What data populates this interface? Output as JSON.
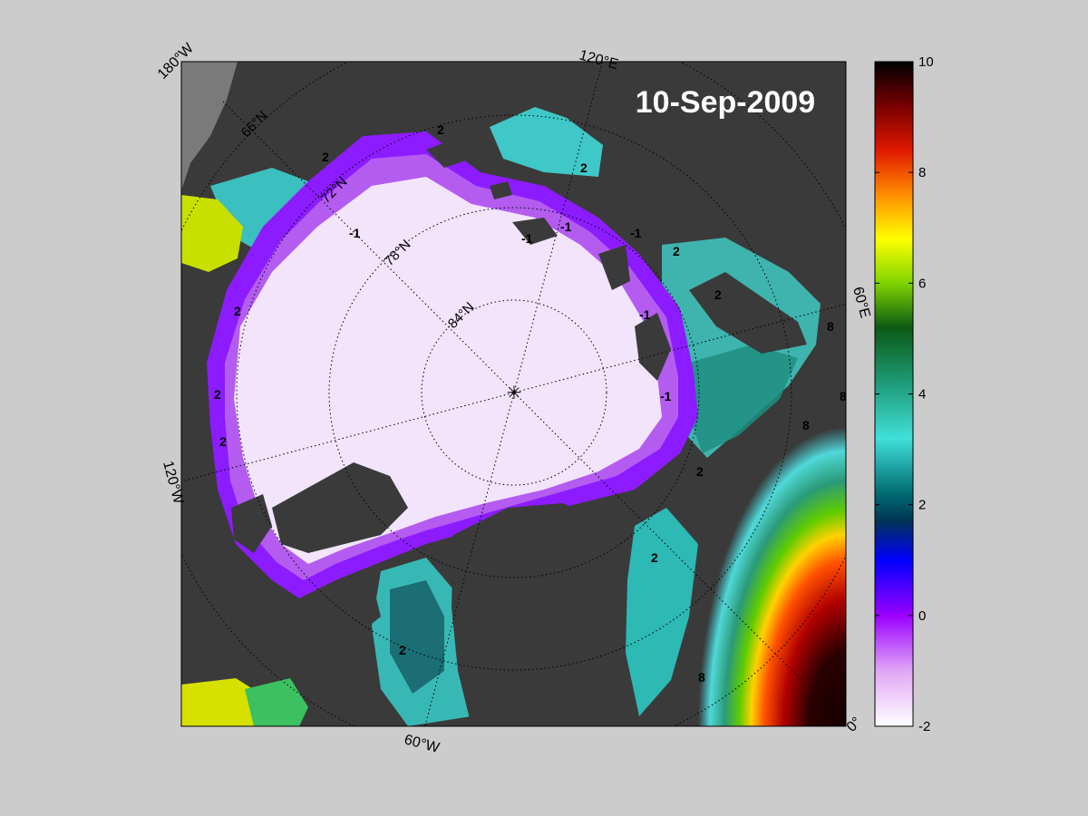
{
  "map": {
    "date_label": "10-Sep-2009",
    "longitude_labels": [
      "180°W",
      "120°E",
      "60°E",
      "0°",
      "60°W",
      "120°W"
    ],
    "latitude_labels": [
      "66°N",
      "72°N",
      "78°N",
      "84°N"
    ],
    "contour_labels": [
      "-1",
      "-1",
      "-1",
      "-1",
      "-1",
      "-1",
      "2",
      "2",
      "2",
      "2",
      "2",
      "2",
      "2",
      "2",
      "2",
      "2",
      "2",
      "8",
      "8",
      "8",
      "8"
    ],
    "colors": {
      "page_background": "#cccccc",
      "land": "#3a3a3a",
      "no_data": "#7a7a7a",
      "ice": "#f4e6fb"
    }
  },
  "colorbar": {
    "tick_labels": [
      "10",
      "8",
      "6",
      "4",
      "2",
      "0",
      "-2"
    ],
    "min": -2,
    "max": 10,
    "stops": [
      {
        "value": -2,
        "color": "#ffffff"
      },
      {
        "value": -1,
        "color": "#e1a6f6"
      },
      {
        "value": 0,
        "color": "#9a00ff"
      },
      {
        "value": 1,
        "color": "#0000ff"
      },
      {
        "value": 1.7,
        "color": "#003355"
      },
      {
        "value": 2.2,
        "color": "#006b70"
      },
      {
        "value": 3.2,
        "color": "#40e0d8"
      },
      {
        "value": 4.2,
        "color": "#1e9a78"
      },
      {
        "value": 5.2,
        "color": "#0c5a14"
      },
      {
        "value": 6,
        "color": "#7fd400"
      },
      {
        "value": 6.8,
        "color": "#ffff00"
      },
      {
        "value": 7.6,
        "color": "#ff8c00"
      },
      {
        "value": 8.4,
        "color": "#e01800"
      },
      {
        "value": 9.2,
        "color": "#780000"
      },
      {
        "value": 10,
        "color": "#000000"
      }
    ]
  }
}
